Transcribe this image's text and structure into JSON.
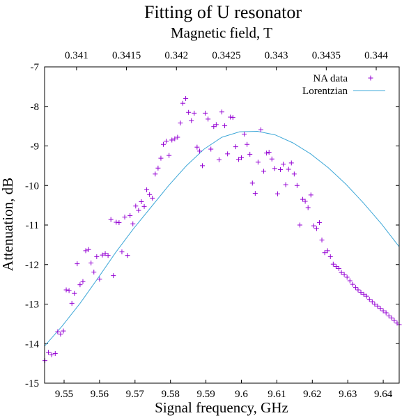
{
  "chart_data": {
    "type": "scatter",
    "title": "Fitting of U resonator",
    "xlabel": "Signal frequency, GHz",
    "ylabel": "Attenuation, dB",
    "x2label": "Magnetic field, T",
    "xlim": [
      9.5445,
      9.6445
    ],
    "ylim": [
      -15,
      -7
    ],
    "x2lim": [
      0.34068,
      0.34423
    ],
    "xticks": [
      "9.55",
      "9.56",
      "9.57",
      "9.58",
      "9.59",
      "9.6",
      "9.61",
      "9.62",
      "9.63",
      "9.64"
    ],
    "x2ticks": [
      "0.341",
      "0.3415",
      "0.342",
      "0.3425",
      "0.343",
      "0.3435",
      "0.344"
    ],
    "yticks": [
      "-15",
      "-14",
      "-13",
      "-12",
      "-11",
      "-10",
      "-9",
      "-8",
      "-7"
    ],
    "grid": false,
    "legend": "top-right",
    "colors": {
      "data": "#9400d3",
      "fit": "#3fa8d8"
    },
    "series": [
      {
        "name": "NA data",
        "style": "points",
        "x": [
          9.5446,
          9.5456,
          9.5465,
          9.5475,
          9.5482,
          9.549,
          9.5498,
          9.5506,
          9.5514,
          9.5522,
          9.5529,
          9.5537,
          9.5545,
          9.5553,
          9.5561,
          9.5569,
          9.5576,
          9.5584,
          9.5592,
          9.56,
          9.5608,
          9.5616,
          9.5624,
          9.5632,
          9.5639,
          9.5647,
          9.5655,
          9.5663,
          9.5671,
          9.5679,
          9.5686,
          9.5694,
          9.5702,
          9.571,
          9.5718,
          9.5726,
          9.5733,
          9.5741,
          9.5749,
          9.5757,
          9.5765,
          9.5773,
          9.578,
          9.5788,
          9.5796,
          9.5804,
          9.5812,
          9.582,
          9.5828,
          9.5835,
          9.5843,
          9.5851,
          9.5859,
          9.5867,
          9.5875,
          9.5882,
          9.589,
          9.5898,
          9.5906,
          9.5914,
          9.5922,
          9.5929,
          9.5937,
          9.5945,
          9.5953,
          9.5961,
          9.5969,
          9.5976,
          9.5984,
          9.5992,
          9.6,
          9.6008,
          9.6016,
          9.6024,
          9.6031,
          9.6039,
          9.6047,
          9.6055,
          9.6063,
          9.6071,
          9.6078,
          9.6086,
          9.6094,
          9.6102,
          9.611,
          9.6118,
          9.6125,
          9.6133,
          9.6141,
          9.6149,
          9.6157,
          9.6165,
          9.6173,
          9.618,
          9.6188,
          9.6196,
          9.6204,
          9.6212,
          9.622,
          9.6227,
          9.6235,
          9.6243,
          9.6251,
          9.6259,
          9.6267,
          9.6275,
          9.6282,
          9.629,
          9.6298,
          9.6306,
          9.6314,
          9.6322,
          9.6329,
          9.6337,
          9.6345,
          9.6353,
          9.6361,
          9.6369,
          9.6376,
          9.6384,
          9.6392,
          9.64,
          9.6408,
          9.6416,
          9.6424,
          9.6431,
          9.6439,
          9.6445
        ],
        "y": [
          -14.43,
          -14.22,
          -14.28,
          -14.25,
          -13.7,
          -13.76,
          -13.68,
          -12.64,
          -12.66,
          -12.98,
          -12.73,
          -11.98,
          -12.51,
          -12.43,
          -11.65,
          -11.62,
          -11.96,
          -12.19,
          -11.8,
          -12.37,
          -11.76,
          -11.72,
          -11.77,
          -10.86,
          -12.28,
          -10.93,
          -10.94,
          -11.68,
          -10.8,
          -11.77,
          -10.76,
          -10.97,
          -10.52,
          -10.63,
          -10.41,
          -10.53,
          -10.11,
          -10.23,
          -10.32,
          -9.71,
          -9.56,
          -9.31,
          -8.96,
          -8.88,
          -9.24,
          -8.85,
          -8.82,
          -8.78,
          -8.42,
          -7.92,
          -7.8,
          -8.15,
          -8.36,
          -8.17,
          -9.03,
          -9.13,
          -9.5,
          -8.17,
          -8.32,
          -9.08,
          -8.51,
          -8.46,
          -9.35,
          -8.14,
          -8.49,
          -9.2,
          -8.27,
          -8.28,
          -9.02,
          -9.34,
          -9.3,
          -8.7,
          -8.96,
          -9.21,
          -9.94,
          -10.2,
          -9.41,
          -8.59,
          -9.64,
          -9.18,
          -9.16,
          -9.33,
          -9.57,
          -10.21,
          -9.6,
          -9.46,
          -9.98,
          -9.59,
          -9.43,
          -9.71,
          -10.0,
          -11.0,
          -10.35,
          -10.4,
          -10.56,
          -10.24,
          -11.02,
          -11.09,
          -10.94,
          -11.38,
          -11.7,
          -11.65,
          -11.8,
          -11.99,
          -12.05,
          -12.1,
          -12.2,
          -12.25,
          -12.32,
          -12.41,
          -12.5,
          -12.58,
          -12.64,
          -12.7,
          -12.75,
          -12.8,
          -12.88,
          -12.94,
          -13.0,
          -13.05,
          -13.11,
          -13.17,
          -13.22,
          -13.3,
          -13.35,
          -13.41,
          -13.48,
          -13.52
        ],
        "marker": "+"
      },
      {
        "name": "Lorentzian",
        "style": "line",
        "x": [
          9.5445,
          9.5495,
          9.5545,
          9.5595,
          9.5645,
          9.5695,
          9.5745,
          9.5795,
          9.5845,
          9.5895,
          9.5945,
          9.5995,
          9.6045,
          9.6095,
          9.6145,
          9.6195,
          9.6245,
          9.6295,
          9.6345,
          9.6395,
          9.6445
        ],
        "y": [
          -14.06,
          -13.55,
          -12.98,
          -12.35,
          -11.7,
          -11.1,
          -10.55,
          -10.0,
          -9.5,
          -9.08,
          -8.78,
          -8.64,
          -8.63,
          -8.72,
          -8.92,
          -9.2,
          -9.55,
          -9.97,
          -10.45,
          -10.97,
          -11.55
        ]
      }
    ]
  }
}
